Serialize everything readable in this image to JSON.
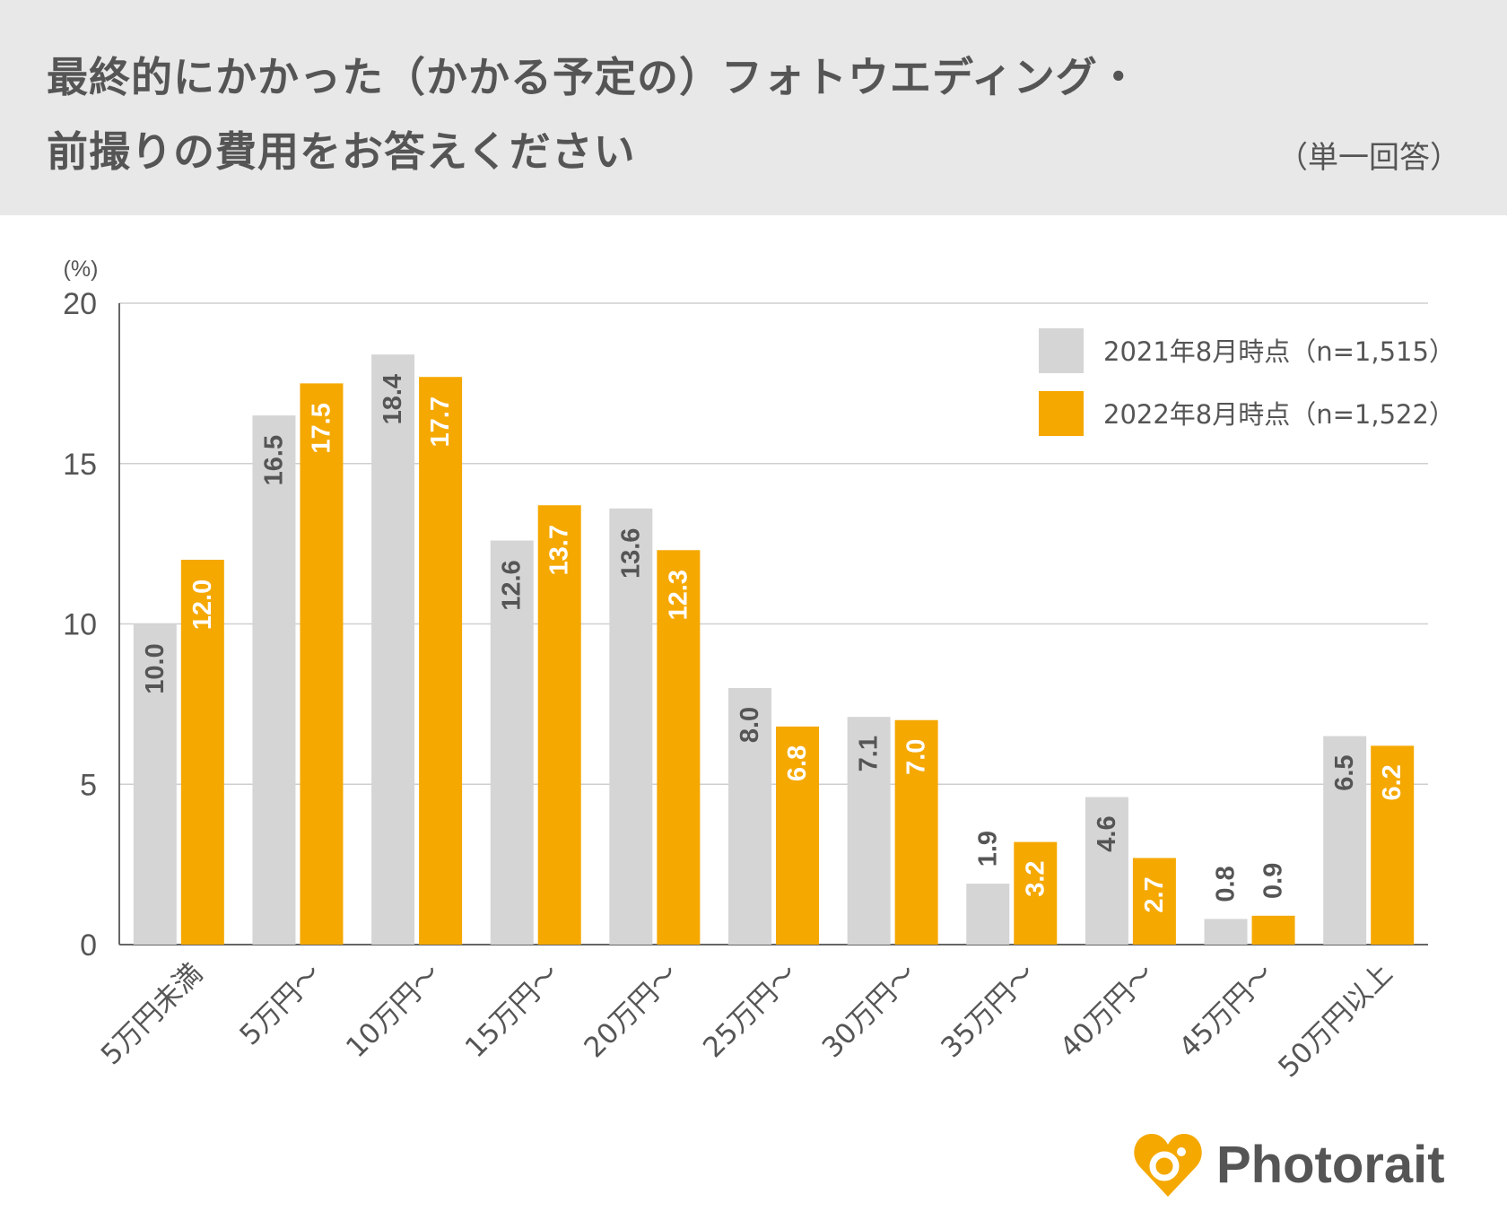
{
  "header": {
    "title_line1": "最終的にかかった（かかる予定の）フォトウエディング・",
    "title_line2": "前撮りの費用をお答えください",
    "note": "（単一回答）"
  },
  "brand": {
    "name": "Photorait",
    "icon": "heart-logo-icon",
    "color": "#f5a800"
  },
  "chart_data": {
    "type": "bar",
    "categories": [
      "5万円未満",
      "5万円～",
      "10万円～",
      "15万円～",
      "20万円～",
      "25万円～",
      "30万円～",
      "35万円～",
      "40万円～",
      "45万円～",
      "50万円以上"
    ],
    "series": [
      {
        "name": "2021年8月時点（n=1,515）",
        "color": "#d5d5d5",
        "values": [
          10.0,
          16.5,
          18.4,
          12.6,
          13.6,
          8.0,
          7.1,
          1.9,
          4.6,
          0.8,
          6.5
        ]
      },
      {
        "name": "2022年8月時点（n=1,522）",
        "color": "#f5a800",
        "values": [
          12.0,
          17.5,
          17.7,
          13.7,
          12.3,
          6.8,
          7.0,
          3.2,
          2.7,
          0.9,
          6.2
        ]
      }
    ],
    "ylabel": "(%)",
    "ylim": [
      0,
      20
    ],
    "yticks": [
      0,
      5,
      10,
      15,
      20
    ],
    "grid": true,
    "legend": "top-right"
  }
}
